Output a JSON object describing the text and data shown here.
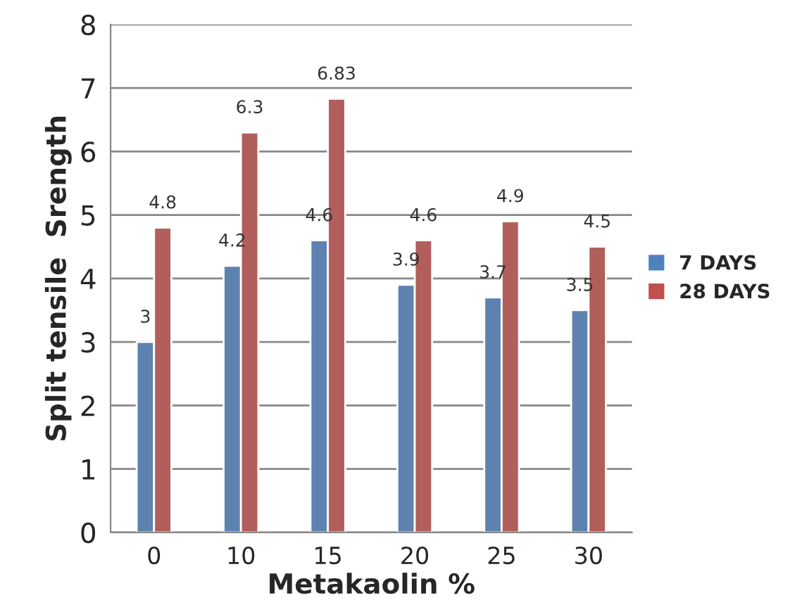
{
  "chart_data": {
    "type": "bar",
    "xlabel": "Metakaolin %",
    "ylabel": "Split tensile  Srength",
    "categories": [
      "0",
      "10",
      "15",
      "20",
      "25",
      "30"
    ],
    "series": [
      {
        "name": "7 DAYS",
        "color": "#4f81bd",
        "values": [
          3,
          4.2,
          4.6,
          3.9,
          3.7,
          3.5
        ]
      },
      {
        "name": "28 DAYS",
        "color": "#c0504d",
        "values": [
          4.8,
          6.3,
          6.83,
          4.6,
          4.9,
          4.5
        ]
      }
    ],
    "ylim": [
      0,
      8
    ],
    "yticks": [
      0,
      1,
      2,
      3,
      4,
      5,
      6,
      7,
      8
    ],
    "grid": "y",
    "legend": "right",
    "data_labels": true
  }
}
